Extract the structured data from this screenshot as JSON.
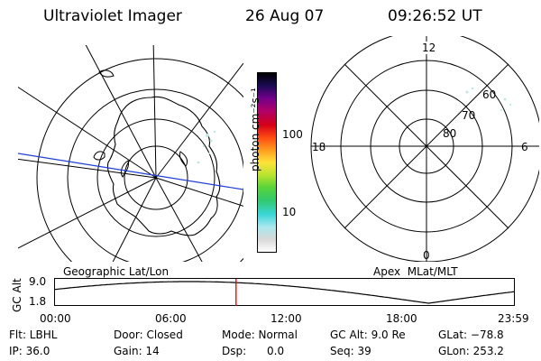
{
  "header": {
    "instrument": "Ultraviolet Imager",
    "date": "26 Aug 07",
    "time": "09:26:52 UT"
  },
  "colors": {
    "coastline": "#000000",
    "track_line": "#1f3fd6",
    "time_marker": "#d40000",
    "aurora_speckle": "#bfe6e0"
  },
  "colorbar": {
    "unit_label": "photon cm⁻²s⁻¹",
    "ticks": [
      "100",
      "10"
    ],
    "gradient": [
      "#ffffff",
      "#d8d8d8",
      "#a9e7ef",
      "#39d6d6",
      "#32c86b",
      "#59d43b",
      "#b9e42f",
      "#ffe23a",
      "#ff9b1f",
      "#ff4a12",
      "#d40018",
      "#b0006a",
      "#71008b",
      "#1a0a52",
      "#000000"
    ]
  },
  "geo_panel": {
    "caption": "Geographic Lat/Lon",
    "icons": [
      "polar-grid-icon",
      "coastline-icon"
    ]
  },
  "apex_panel": {
    "caption": "Apex  MLat/MLT",
    "mlt_labels": {
      "top": "12",
      "right": "6",
      "bottom": "0",
      "left": "18"
    },
    "mlat_labels": [
      "60",
      "70",
      "80"
    ]
  },
  "altitude_plot": {
    "ylabel": "GC Alt",
    "yticks": [
      "9.0",
      "1.8"
    ],
    "xticks": [
      "00:00",
      "06:00",
      "12:00",
      "18:00",
      "23:59"
    ],
    "marker_hour": 9.45
  },
  "footer": {
    "flt": "Flt: LBHL",
    "ip": "IP: 36.0",
    "door": "Door: Closed",
    "gain": "Gain: 14",
    "mode": "Mode: Normal",
    "dsp": "Dsp:      0.0",
    "gcalt": "GC Alt: 9.0 Re",
    "seq": "Seq: 39",
    "glat": "GLat: −78.8",
    "glon": "GLon: 253.2"
  }
}
